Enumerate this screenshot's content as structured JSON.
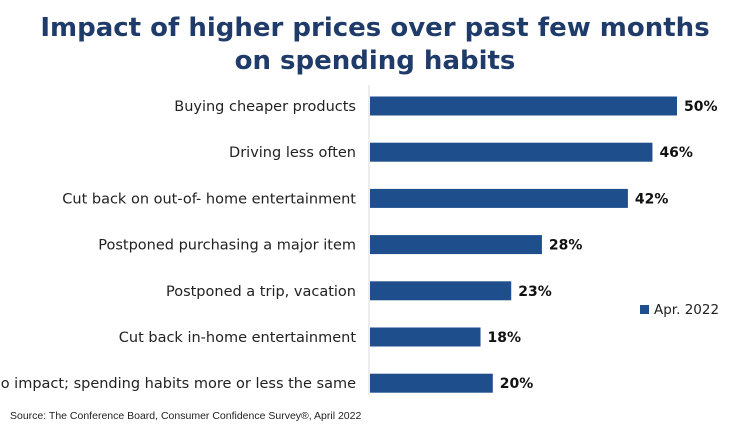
{
  "chart_data": {
    "type": "bar",
    "orientation": "horizontal",
    "title_lines": [
      "Impact of higher prices over past few months",
      "on spending habits"
    ],
    "categories": [
      "Buying cheaper products",
      "Driving less often",
      "Cut back on out-of- home entertainment",
      "Postponed purchasing a major item",
      "Postponed a trip, vacation",
      "Cut back in-home entertainment",
      "No impact; spending habits more or less the same"
    ],
    "series": [
      {
        "name": "Apr. 2022",
        "values": [
          50,
          46,
          42,
          28,
          23,
          18,
          20
        ],
        "color": "#1f4e8c"
      }
    ],
    "value_labels": [
      "50%",
      "46%",
      "42%",
      "28%",
      "23%",
      "18%",
      "20%"
    ],
    "xlim": [
      0,
      50
    ],
    "grid": false,
    "legend_position": "right"
  },
  "source": "Source: The Conference Board, Consumer Confidence Survey®, April 2022"
}
